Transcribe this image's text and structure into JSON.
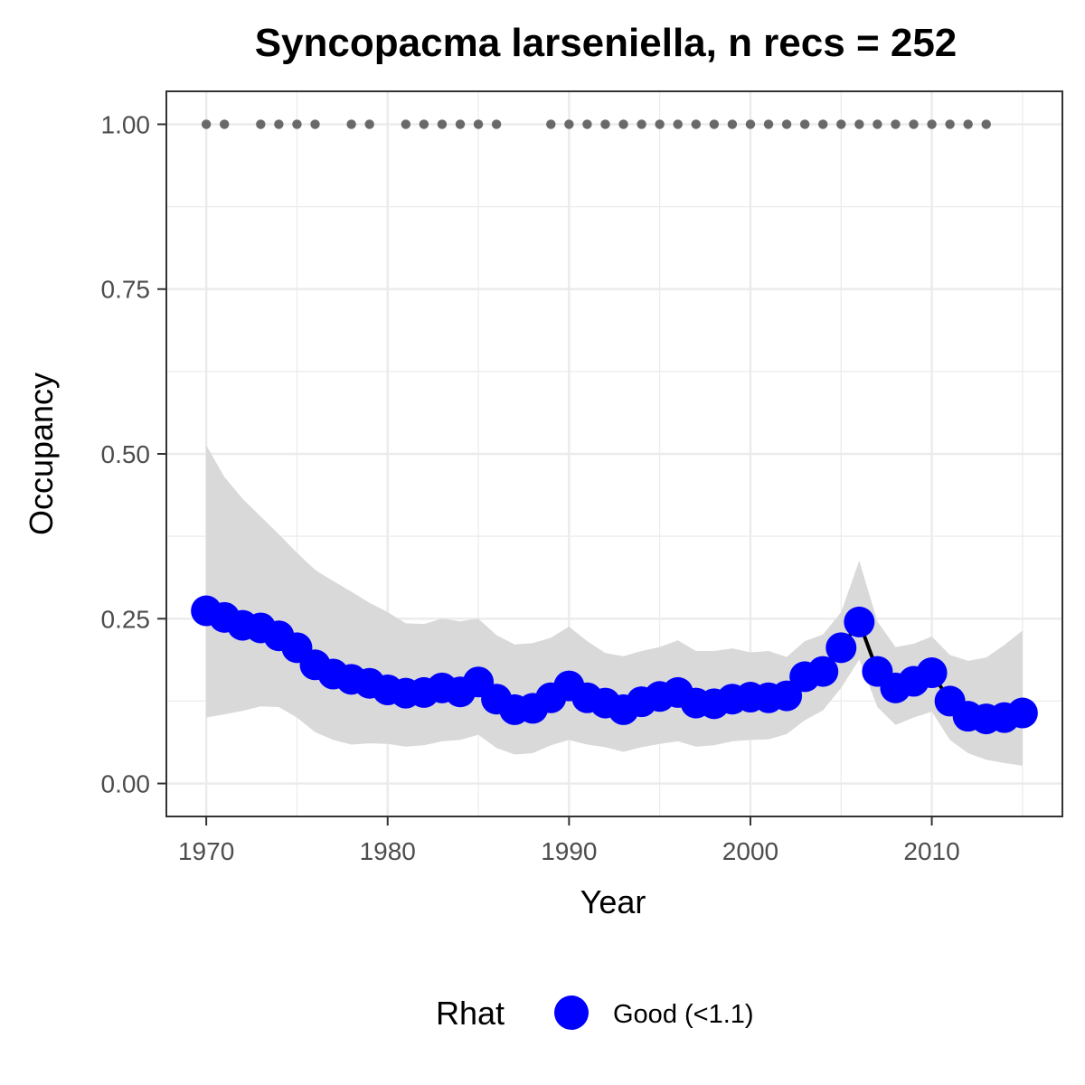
{
  "chart_data": {
    "type": "line",
    "title": "Syncopacma larseniella, n recs = 252",
    "xlabel": "Year",
    "ylabel": "Occupancy",
    "xlim": [
      1967.8,
      2017.2
    ],
    "ylim": [
      -0.05,
      1.05
    ],
    "x_ticks": [
      1970,
      1980,
      1990,
      2000,
      2010
    ],
    "x_tick_labels": [
      "1970",
      "1980",
      "1990",
      "2000",
      "2010"
    ],
    "y_ticks": [
      0,
      0.25,
      0.5,
      0.75,
      1.0
    ],
    "y_tick_labels": [
      "0.00",
      "0.25",
      "0.50",
      "0.75",
      "1.00"
    ],
    "grid": true,
    "legend_position": "bottom",
    "legend": {
      "title": "Rhat",
      "entries": [
        {
          "label": "Good (<1.1)",
          "color": "#0000ff"
        }
      ]
    },
    "colors": {
      "points": "#0000ff",
      "line": "#000000",
      "ribbon": "#d9d9d9",
      "records": "#696969",
      "grid": "#ebebeb",
      "panel_border": "#333333"
    },
    "x": [
      1970,
      1971,
      1972,
      1973,
      1974,
      1975,
      1976,
      1977,
      1978,
      1979,
      1980,
      1981,
      1982,
      1983,
      1984,
      1985,
      1986,
      1987,
      1988,
      1989,
      1990,
      1991,
      1992,
      1993,
      1994,
      1995,
      1996,
      1997,
      1998,
      1999,
      2000,
      2001,
      2002,
      2003,
      2004,
      2005,
      2006,
      2007,
      2008,
      2009,
      2010,
      2011,
      2012,
      2013,
      2014,
      2015
    ],
    "series": [
      {
        "type": "line",
        "values": [
          0.262,
          0.252,
          0.24,
          0.236,
          0.224,
          0.206,
          0.18,
          0.166,
          0.158,
          0.152,
          0.142,
          0.137,
          0.138,
          0.145,
          0.139,
          0.154,
          0.128,
          0.112,
          0.114,
          0.13,
          0.148,
          0.13,
          0.122,
          0.112,
          0.124,
          0.132,
          0.138,
          0.122,
          0.121,
          0.128,
          0.131,
          0.13,
          0.133,
          0.162,
          0.17,
          0.206,
          0.245,
          0.17,
          0.145,
          0.155,
          0.168,
          0.125,
          0.102,
          0.098,
          0.1,
          0.107
        ],
        "lower": [
          0.1,
          0.105,
          0.11,
          0.117,
          0.116,
          0.1,
          0.078,
          0.066,
          0.059,
          0.061,
          0.06,
          0.056,
          0.058,
          0.064,
          0.066,
          0.074,
          0.054,
          0.044,
          0.046,
          0.058,
          0.066,
          0.059,
          0.055,
          0.048,
          0.055,
          0.06,
          0.064,
          0.056,
          0.058,
          0.064,
          0.066,
          0.067,
          0.075,
          0.096,
          0.111,
          0.145,
          0.188,
          0.116,
          0.089,
          0.1,
          0.109,
          0.066,
          0.046,
          0.036,
          0.031,
          0.027
        ],
        "upper": [
          0.513,
          0.465,
          0.432,
          0.405,
          0.378,
          0.35,
          0.324,
          0.307,
          0.291,
          0.274,
          0.26,
          0.243,
          0.242,
          0.25,
          0.246,
          0.25,
          0.225,
          0.211,
          0.213,
          0.221,
          0.238,
          0.216,
          0.198,
          0.193,
          0.201,
          0.207,
          0.217,
          0.201,
          0.201,
          0.205,
          0.199,
          0.201,
          0.192,
          0.216,
          0.226,
          0.26,
          0.338,
          0.246,
          0.207,
          0.212,
          0.223,
          0.195,
          0.186,
          0.191,
          0.21,
          0.232
        ]
      },
      {
        "type": "scatter",
        "x": [
          1970,
          1971,
          1973,
          1974,
          1975,
          1976,
          1978,
          1979,
          1981,
          1982,
          1983,
          1984,
          1985,
          1986,
          1989,
          1990,
          1991,
          1992,
          1993,
          1994,
          1995,
          1996,
          1997,
          1998,
          1999,
          2000,
          2001,
          2002,
          2003,
          2004,
          2005,
          2006,
          2007,
          2008,
          2009,
          2010,
          2011,
          2012,
          2013
        ],
        "values": [
          1,
          1,
          1,
          1,
          1,
          1,
          1,
          1,
          1,
          1,
          1,
          1,
          1,
          1,
          1,
          1,
          1,
          1,
          1,
          1,
          1,
          1,
          1,
          1,
          1,
          1,
          1,
          1,
          1,
          1,
          1,
          1,
          1,
          1,
          1,
          1,
          1,
          1,
          1
        ]
      }
    ]
  }
}
